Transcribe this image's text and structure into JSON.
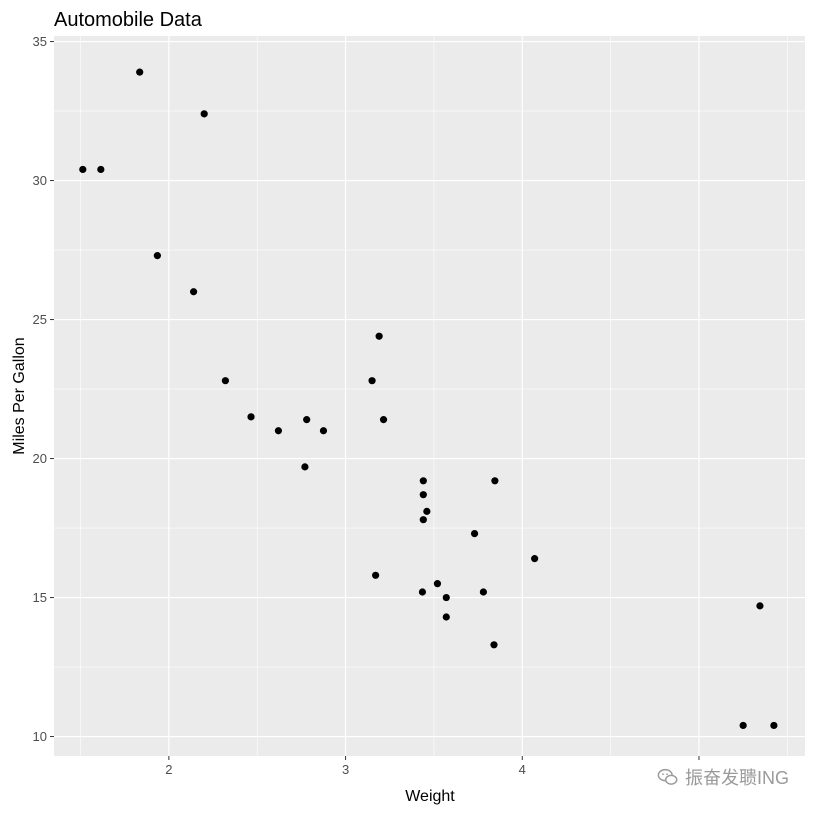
{
  "chart_data": {
    "type": "scatter",
    "title": "Automobile Data",
    "xlabel": "Weight",
    "ylabel": "Miles Per Gallon",
    "xlim": [
      1.35,
      5.6
    ],
    "ylim": [
      9.3,
      35.2
    ],
    "xticks": [
      2,
      3,
      4,
      5
    ],
    "xtick_labels": [
      "2",
      "3",
      "4",
      ""
    ],
    "yticks": [
      10,
      15,
      20,
      25,
      30,
      35
    ],
    "ytick_labels": [
      "10",
      "15",
      "20",
      "25",
      "30",
      "35"
    ],
    "grid": true,
    "colors": {
      "panel": "#ebebeb",
      "grid": "#ffffff",
      "point": "#000000"
    },
    "points": [
      {
        "x": 2.62,
        "y": 21.0
      },
      {
        "x": 2.875,
        "y": 21.0
      },
      {
        "x": 2.32,
        "y": 22.8
      },
      {
        "x": 3.215,
        "y": 21.4
      },
      {
        "x": 3.44,
        "y": 18.7
      },
      {
        "x": 3.46,
        "y": 18.1
      },
      {
        "x": 3.57,
        "y": 14.3
      },
      {
        "x": 3.19,
        "y": 24.4
      },
      {
        "x": 3.15,
        "y": 22.8
      },
      {
        "x": 3.44,
        "y": 19.2
      },
      {
        "x": 3.44,
        "y": 17.8
      },
      {
        "x": 4.07,
        "y": 16.4
      },
      {
        "x": 3.73,
        "y": 17.3
      },
      {
        "x": 3.78,
        "y": 15.2
      },
      {
        "x": 5.25,
        "y": 10.4
      },
      {
        "x": 5.424,
        "y": 10.4
      },
      {
        "x": 5.345,
        "y": 14.7
      },
      {
        "x": 2.2,
        "y": 32.4
      },
      {
        "x": 1.615,
        "y": 30.4
      },
      {
        "x": 1.835,
        "y": 33.9
      },
      {
        "x": 2.465,
        "y": 21.5
      },
      {
        "x": 3.52,
        "y": 15.5
      },
      {
        "x": 3.435,
        "y": 15.2
      },
      {
        "x": 3.84,
        "y": 13.3
      },
      {
        "x": 3.845,
        "y": 19.2
      },
      {
        "x": 1.935,
        "y": 27.3
      },
      {
        "x": 2.14,
        "y": 26.0
      },
      {
        "x": 1.513,
        "y": 30.4
      },
      {
        "x": 3.17,
        "y": 15.8
      },
      {
        "x": 2.77,
        "y": 19.7
      },
      {
        "x": 3.57,
        "y": 15.0
      },
      {
        "x": 2.78,
        "y": 21.4
      }
    ]
  },
  "watermark": {
    "text": "振奋发聩ING",
    "icon": "wechat-icon"
  }
}
